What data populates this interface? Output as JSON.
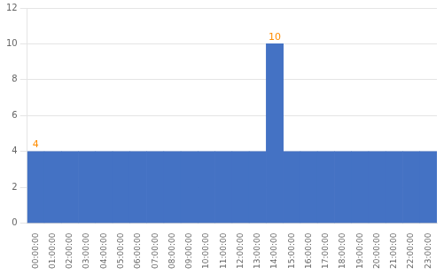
{
  "chart_data": {
    "type": "bar",
    "categories": [
      "00:00:00",
      "01:00:00",
      "02:00:00",
      "03:00:00",
      "04:00:00",
      "05:00:00",
      "06:00:00",
      "07:00:00",
      "08:00:00",
      "09:00:00",
      "10:00:00",
      "11:00:00",
      "12:00:00",
      "13:00:00",
      "14:00:00",
      "15:00:00",
      "16:00:00",
      "17:00:00",
      "18:00:00",
      "19:00:00",
      "20:00:00",
      "21:00:00",
      "22:00:00",
      "23:00:00"
    ],
    "values": [
      4,
      4,
      4,
      4,
      4,
      4,
      4,
      4,
      4,
      4,
      4,
      4,
      4,
      4,
      10,
      4,
      4,
      4,
      4,
      4,
      4,
      4,
      4,
      4
    ],
    "color": "#4472C4",
    "ylim": [
      0,
      12
    ],
    "yticks": [
      0,
      2,
      4,
      6,
      8,
      10,
      12
    ],
    "grid": true,
    "annotations": [
      {
        "category": "00:00:00",
        "value": 4,
        "text": "4",
        "color": "#FF8C00"
      },
      {
        "category": "14:00:00",
        "value": 10,
        "text": "10",
        "color": "#FF8C00"
      }
    ]
  }
}
